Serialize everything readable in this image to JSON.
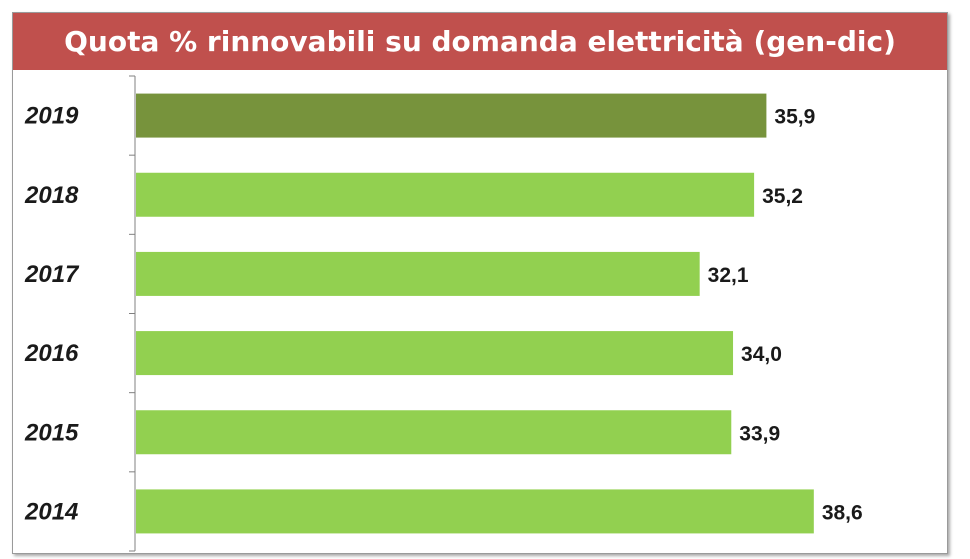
{
  "chart_data": {
    "type": "bar",
    "orientation": "horizontal",
    "title": "Quota % rinnovabili su domanda elettricità (gen-dic)",
    "categories": [
      "2019",
      "2018",
      "2017",
      "2016",
      "2015",
      "2014"
    ],
    "values": [
      35.9,
      35.2,
      32.1,
      34.0,
      33.9,
      38.6
    ],
    "value_labels": [
      "35,9",
      "35,2",
      "32,1",
      "34,0",
      "33,9",
      "38,6"
    ],
    "xlim": [
      0,
      40
    ],
    "grid": false,
    "legend": "none",
    "colors": {
      "title_background": "#c0504d",
      "title_text": "#ffffff",
      "highlight_bar": "#77933c",
      "bar": "#92d050",
      "axis": "#808080"
    },
    "highlight_category": "2019"
  }
}
